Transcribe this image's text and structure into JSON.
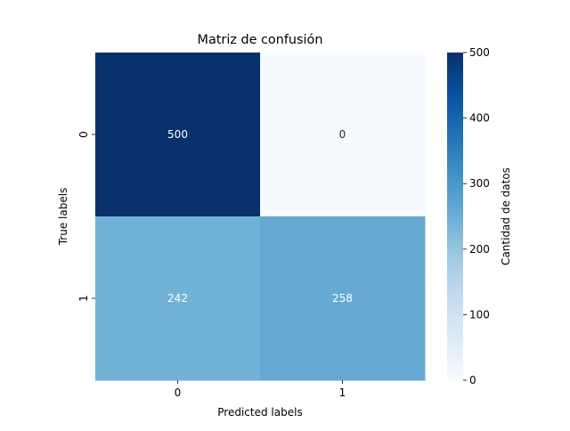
{
  "chart_data": {
    "type": "heatmap",
    "title": "Matriz de confusión",
    "xlabel": "Predicted labels",
    "ylabel": "True labels",
    "x_categories": [
      "0",
      "1"
    ],
    "y_categories": [
      "0",
      "1"
    ],
    "values": [
      [
        500,
        0
      ],
      [
        242,
        258
      ]
    ],
    "colormap": "Blues",
    "vmin": 0,
    "vmax": 500,
    "colorbar": {
      "label": "Cantidad de datos",
      "ticks": [
        0,
        100,
        200,
        300,
        400,
        500
      ],
      "tick_labels": [
        "0",
        "100",
        "200",
        "300",
        "400",
        "500"
      ]
    },
    "annotation_colors": {
      "light": "#ffffff",
      "dark": "#262626"
    }
  }
}
